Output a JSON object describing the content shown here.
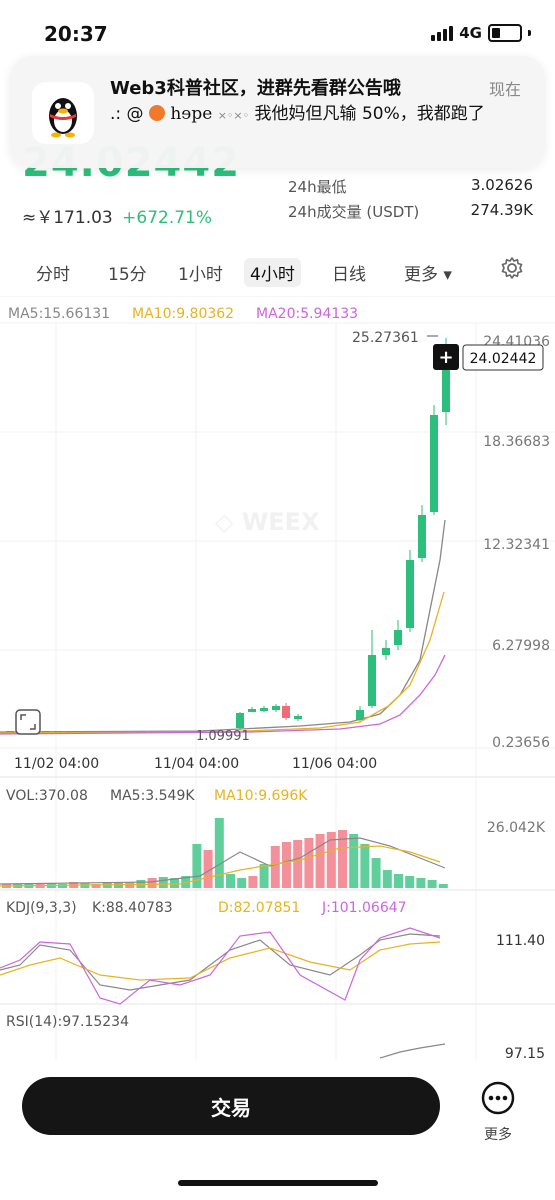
{
  "status": {
    "time": "20:37",
    "network": "4G"
  },
  "notification": {
    "title": "Web3科普社区，进群先看群公告哦",
    "time": "现在",
    "body_prefix": ".: @",
    "body_name": "hɘpe",
    "body_text": "我他妈但凡输 50%，我都跑了"
  },
  "header": {
    "price": "24.02442",
    "cny_price": "≈￥171.03",
    "change_pct": "+672.71%",
    "stats": [
      {
        "label": "24h最低",
        "value": "3.02626"
      },
      {
        "label": "24h成交量 (USDT)",
        "value": "274.39K"
      }
    ]
  },
  "tabs": {
    "items": [
      "分时",
      "15分",
      "1小时",
      "4小时",
      "日线",
      "更多 ▾"
    ],
    "active": "4小时"
  },
  "ma": {
    "ma5": "MA5:15.66131",
    "ma10": "MA10:9.80362",
    "ma20": "MA20:5.94133"
  },
  "price_axis": [
    "24.41036",
    "18.36683",
    "12.32341",
    "6.27998",
    "0.23656"
  ],
  "price_tags": {
    "high": "25.27361",
    "last": "24.02442",
    "low": "1.09991"
  },
  "x_axis": [
    "11/02 04:00",
    "11/04 04:00",
    "11/06 04:00"
  ],
  "vol": {
    "vol": "VOL:370.08",
    "ma5": "MA5:3.549K",
    "ma10": "MA10:9.696K",
    "axis": "26.042K"
  },
  "kdj": {
    "label": "KDJ(9,3,3)",
    "k": "K:88.40783",
    "d": "D:82.07851",
    "j": "J:101.06647",
    "axis": "111.40"
  },
  "rsi": {
    "label": "RSI(14):97.15234",
    "axis": "97.15"
  },
  "bottom": {
    "trade": "交易",
    "more": "更多"
  },
  "colors": {
    "up": "#2bbf7b",
    "down": "#ef6b78",
    "ma5": "#888888",
    "ma10": "#e6b422",
    "ma20": "#cc66dd"
  }
}
